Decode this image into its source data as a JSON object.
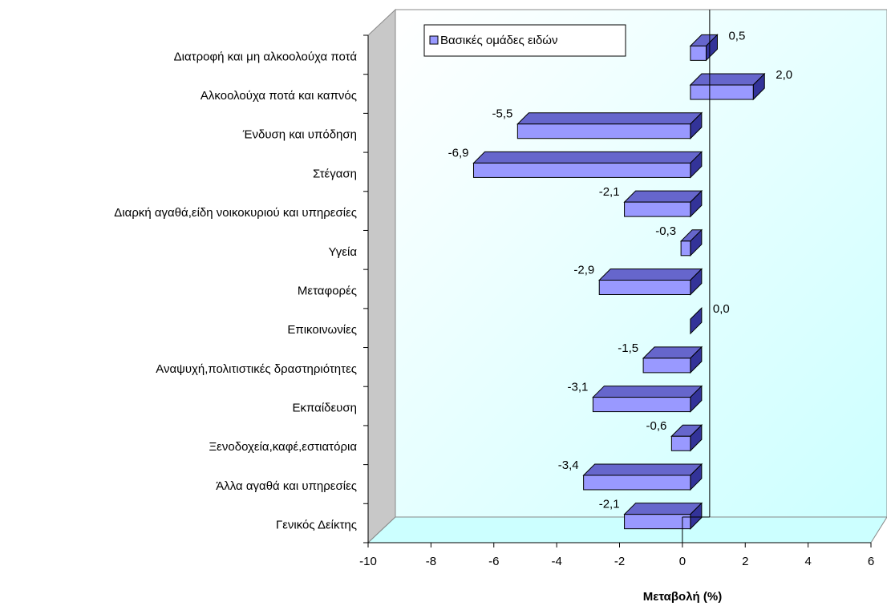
{
  "chart_data": {
    "type": "bar",
    "orientation": "horizontal",
    "x_label": "Μεταβολή (%)",
    "categories": [
      "Διατροφή και μη αλκοολούχα ποτά",
      "Αλκοολούχα ποτά και καπνός",
      "Ένδυση και υπόδηση",
      "Στέγαση",
      "Διαρκή αγαθά,είδη νοικοκυριού και υπηρεσίες",
      "Υγεία",
      "Μεταφορές",
      "Επικοινωνίες",
      "Αναψυχή,πολιτιστικές δραστηριότητες",
      "Εκπαίδευση",
      "Ξενοδοχεία,καφέ,εστιατόρια",
      "Άλλα αγαθά και υπηρεσίες",
      "Γενικός Δείκτης"
    ],
    "series": [
      {
        "name": "Βασικές ομάδες ειδών",
        "color": "#9999ff",
        "values": [
          0.5,
          2.0,
          -5.5,
          -6.9,
          -2.1,
          -0.3,
          -2.9,
          0.0,
          -1.5,
          -3.1,
          -0.6,
          -3.4,
          -2.1
        ],
        "value_labels": [
          "0,5",
          "2,0",
          "-5,5",
          "-6,9",
          "-2,1",
          "-0,3",
          "-2,9",
          "0,0",
          "-1,5",
          "-3,1",
          "-0,6",
          "-3,4",
          "-2,1"
        ]
      }
    ],
    "xlim": [
      -10,
      6
    ],
    "xticks": [
      -10,
      -8,
      -6,
      -4,
      -2,
      0,
      2,
      4,
      6
    ]
  }
}
